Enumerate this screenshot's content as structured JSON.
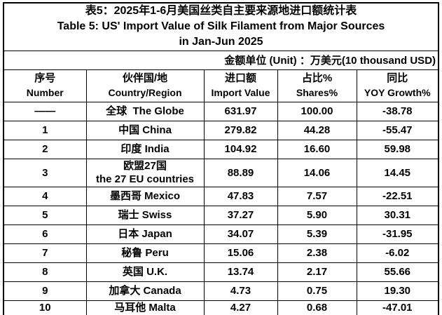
{
  "table": {
    "title": {
      "line1": "表5：2025年1-6月美国丝类自主要来源地进口额统计表",
      "line2": "Table 5: US' Import Value of Silk Filament from Major Sources",
      "line3": "in Jan-Jun 2025"
    },
    "unit_note": "金额单位 (Unit) ：万美元(10 thousand USD)",
    "columns": [
      {
        "zh": "序号",
        "en": "Number"
      },
      {
        "zh": "伙伴国/地",
        "en": "Country/Region"
      },
      {
        "zh": "进口额",
        "en": "Import Value"
      },
      {
        "zh": "占比%",
        "en": "Shares%"
      },
      {
        "zh": "同比",
        "en": "YOY Growth%"
      }
    ],
    "rows": [
      {
        "number": "——",
        "country": "全球  The Globe",
        "import_value": "631.97",
        "shares": "100.00",
        "yoy": "-38.78"
      },
      {
        "number": "1",
        "country": "中国 China",
        "import_value": "279.82",
        "shares": "44.28",
        "yoy": "-55.47"
      },
      {
        "number": "2",
        "country": "印度 India",
        "import_value": "104.92",
        "shares": "16.60",
        "yoy": "59.98"
      },
      {
        "number": "3",
        "country": "欧盟27国\nthe 27 EU countries",
        "import_value": "88.89",
        "shares": "14.06",
        "yoy": "14.45"
      },
      {
        "number": "4",
        "country": "墨西哥 Mexico",
        "import_value": "47.83",
        "shares": "7.57",
        "yoy": "-22.51"
      },
      {
        "number": "5",
        "country": "瑞士 Swiss",
        "import_value": "37.27",
        "shares": "5.90",
        "yoy": "30.31"
      },
      {
        "number": "6",
        "country": "日本 Japan",
        "import_value": "34.07",
        "shares": "5.39",
        "yoy": "-31.95"
      },
      {
        "number": "7",
        "country": "秘鲁 Peru",
        "import_value": "15.06",
        "shares": "2.38",
        "yoy": "-6.02"
      },
      {
        "number": "8",
        "country": "英国 U.K.",
        "import_value": "13.74",
        "shares": "2.17",
        "yoy": "55.66"
      },
      {
        "number": "9",
        "country": "加拿大 Canada",
        "import_value": "4.73",
        "shares": "0.75",
        "yoy": "19.30"
      },
      {
        "number": "10",
        "country": "马耳他 Malta",
        "import_value": "4.27",
        "shares": "0.68",
        "yoy": "-47.01"
      }
    ]
  }
}
